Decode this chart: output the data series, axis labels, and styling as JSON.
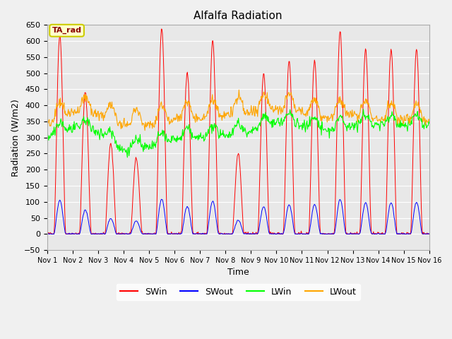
{
  "title": "Alfalfa Radiation",
  "ylabel": "Radiation (W/m2)",
  "xlabel": "Time",
  "ylim": [
    -50,
    650
  ],
  "yticks": [
    -50,
    0,
    50,
    100,
    150,
    200,
    250,
    300,
    350,
    400,
    450,
    500,
    550,
    600,
    650
  ],
  "fig_bg_color": "#f0f0f0",
  "plot_bg_color": "#e8e8e8",
  "legend_entries": [
    "SWin",
    "SWout",
    "LWin",
    "LWout"
  ],
  "legend_colors": [
    "red",
    "blue",
    "lime",
    "orange"
  ],
  "annotation_text": "TA_rad",
  "annotation_bg": "#ffffcc",
  "annotation_border": "#cccc00",
  "n_days": 15,
  "hours_per_day": 24,
  "dt": 0.5,
  "day_peaks_swin": [
    620,
    440,
    280,
    235,
    640,
    505,
    600,
    250,
    500,
    540,
    540,
    630,
    575,
    575,
    575
  ],
  "base_lwin": [
    300,
    330,
    320,
    260,
    270,
    295,
    300,
    310,
    320,
    350,
    340,
    320,
    340,
    340,
    340
  ],
  "base_lwout": [
    340,
    380,
    375,
    335,
    340,
    360,
    360,
    370,
    380,
    390,
    380,
    360,
    370,
    360,
    355
  ]
}
